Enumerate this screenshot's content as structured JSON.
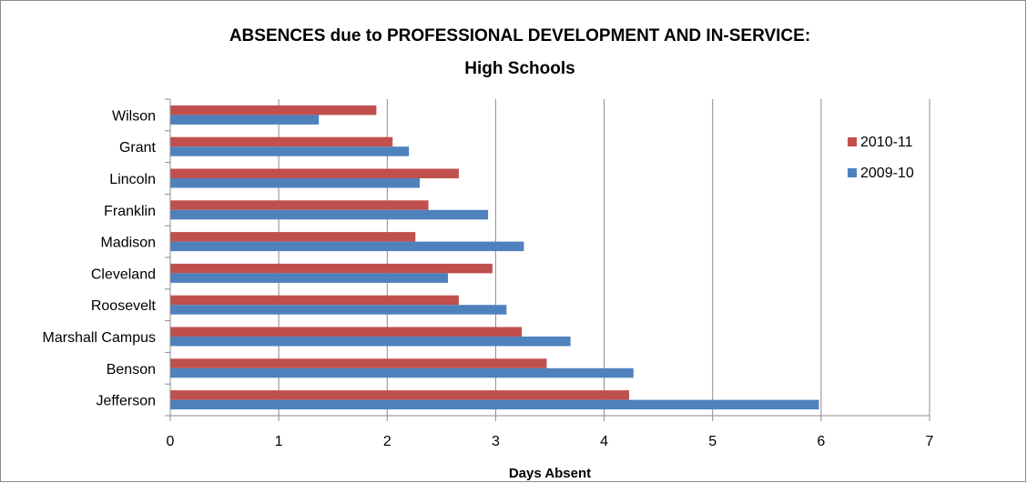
{
  "chart_data": {
    "type": "bar",
    "orientation": "horizontal",
    "title_line1": "ABSENCES due to PROFESSIONAL DEVELOPMENT AND IN-SERVICE:",
    "title_line2": "High Schools",
    "xlabel": "Days Absent",
    "ylabel": "",
    "xlim": [
      0,
      7
    ],
    "xticks": [
      "0",
      "1",
      "2",
      "3",
      "4",
      "5",
      "6",
      "7"
    ],
    "grid": "vertical",
    "legend_position": "right",
    "categories": [
      "Wilson",
      "Grant",
      "Lincoln",
      "Franklin",
      "Madison",
      "Cleveland",
      "Roosevelt",
      "Marshall Campus",
      "Benson",
      "Jefferson"
    ],
    "series": [
      {
        "name": "2010-11",
        "color": "#c0504d",
        "values": [
          1.9,
          2.05,
          2.66,
          2.38,
          2.26,
          2.97,
          2.66,
          3.24,
          3.47,
          4.23
        ]
      },
      {
        "name": "2009-10",
        "color": "#4f81bd",
        "values": [
          1.37,
          2.2,
          2.3,
          2.93,
          3.26,
          2.56,
          3.1,
          3.69,
          4.27,
          5.98
        ]
      }
    ]
  }
}
